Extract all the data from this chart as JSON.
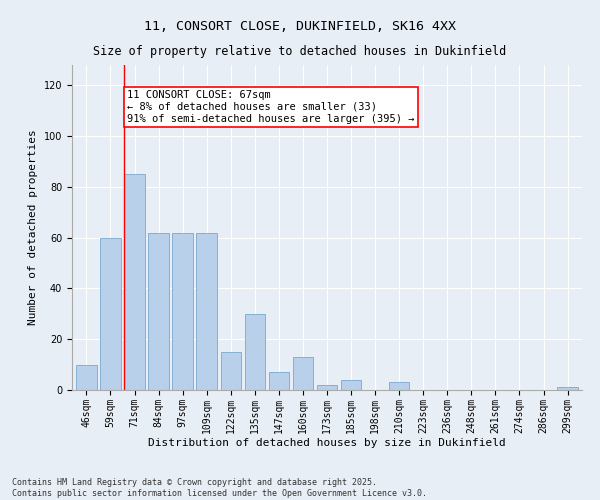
{
  "title1": "11, CONSORT CLOSE, DUKINFIELD, SK16 4XX",
  "title2": "Size of property relative to detached houses in Dukinfield",
  "xlabel": "Distribution of detached houses by size in Dukinfield",
  "ylabel": "Number of detached properties",
  "categories": [
    "46sqm",
    "59sqm",
    "71sqm",
    "84sqm",
    "97sqm",
    "109sqm",
    "122sqm",
    "135sqm",
    "147sqm",
    "160sqm",
    "173sqm",
    "185sqm",
    "198sqm",
    "210sqm",
    "223sqm",
    "236sqm",
    "248sqm",
    "261sqm",
    "274sqm",
    "286sqm",
    "299sqm"
  ],
  "values": [
    10,
    60,
    85,
    62,
    62,
    62,
    15,
    30,
    7,
    13,
    2,
    4,
    0,
    3,
    0,
    0,
    0,
    0,
    0,
    0,
    1
  ],
  "bar_color": "#b8d0ea",
  "bar_edge_color": "#7aa8d0",
  "annotation_title": "11 CONSORT CLOSE: 67sqm",
  "annotation_line1": "← 8% of detached houses are smaller (33)",
  "annotation_line2": "91% of semi-detached houses are larger (395) →",
  "annotation_box_color": "white",
  "annotation_box_edge_color": "red",
  "vline_color": "red",
  "vline_x": 1.55,
  "ylim": [
    0,
    128
  ],
  "yticks": [
    0,
    20,
    40,
    60,
    80,
    100,
    120
  ],
  "footer1": "Contains HM Land Registry data © Crown copyright and database right 2025.",
  "footer2": "Contains public sector information licensed under the Open Government Licence v3.0.",
  "bg_color": "#e8eef5",
  "plot_bg_color": "#e8eef5",
  "title_fontsize": 9.5,
  "subtitle_fontsize": 8.5,
  "axis_label_fontsize": 8,
  "tick_fontsize": 7,
  "footer_fontsize": 6,
  "annotation_fontsize": 7.5
}
